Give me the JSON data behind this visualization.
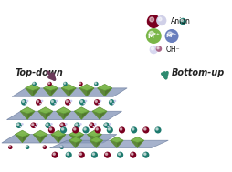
{
  "bg_color": "#ffffff",
  "legend": {
    "anion_label": "Anion",
    "m3_label": "M³⁺",
    "m2_label": "M²⁺",
    "oh_label": "OH⁻"
  },
  "topdown_label": "Top-down",
  "bottomup_label": "Bottom-up",
  "arrow_topdown_color": "#6b3a5a",
  "arrow_bottomup_color": "#2e8b70",
  "layer_color": "#8899bb",
  "layer_edge": "#667799",
  "oct_color": "#7ab648",
  "oct_edge": "#5a9030",
  "anion_color": "#7a0020",
  "teal_color": "#1e7a6e",
  "oh_white": "#d8d8f0",
  "oh_pink": "#aa6688"
}
